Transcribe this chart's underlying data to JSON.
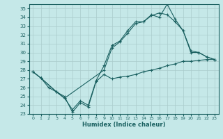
{
  "xlabel": "Humidex (Indice chaleur)",
  "bg_color": "#c5e8e8",
  "line_color": "#1a6060",
  "marker": "+",
  "xlim": [
    -0.5,
    23.5
  ],
  "ylim": [
    23,
    35.5
  ],
  "yticks": [
    23,
    24,
    25,
    26,
    27,
    28,
    29,
    30,
    31,
    32,
    33,
    34,
    35
  ],
  "xticks": [
    0,
    1,
    2,
    3,
    4,
    5,
    6,
    7,
    8,
    9,
    10,
    11,
    12,
    13,
    14,
    15,
    16,
    17,
    18,
    19,
    20,
    21,
    22,
    23
  ],
  "line1_x": [
    0,
    1,
    2,
    3,
    4,
    5,
    6,
    7,
    8,
    9,
    10,
    11,
    12,
    13,
    14,
    15,
    16,
    17,
    18,
    19,
    20,
    21,
    22,
    23
  ],
  "line1_y": [
    27.8,
    27.1,
    26.0,
    25.5,
    25.0,
    23.2,
    24.3,
    23.8,
    26.7,
    27.5,
    27.0,
    27.2,
    27.3,
    27.5,
    27.8,
    28.0,
    28.2,
    28.5,
    28.7,
    29.0,
    29.0,
    29.1,
    29.2,
    29.2
  ],
  "line2_x": [
    0,
    1,
    3,
    4,
    5,
    6,
    7,
    8,
    9,
    10,
    11,
    12,
    13,
    14,
    15,
    16,
    17,
    18,
    19,
    20,
    21,
    22,
    23
  ],
  "line2_y": [
    27.8,
    27.1,
    25.5,
    24.8,
    23.5,
    24.5,
    24.0,
    26.8,
    28.5,
    30.8,
    31.3,
    32.5,
    33.5,
    33.5,
    34.3,
    34.0,
    35.5,
    33.8,
    32.5,
    30.2,
    30.0,
    29.5,
    29.2
  ],
  "line3_x": [
    0,
    1,
    3,
    4,
    9,
    10,
    11,
    12,
    13,
    14,
    15,
    16,
    17,
    18,
    19,
    20,
    21,
    22,
    23
  ],
  "line3_y": [
    27.8,
    27.1,
    25.5,
    24.8,
    28.0,
    30.5,
    31.2,
    32.2,
    33.3,
    33.5,
    34.2,
    34.5,
    34.3,
    33.5,
    32.5,
    30.0,
    30.0,
    29.5,
    29.2
  ]
}
